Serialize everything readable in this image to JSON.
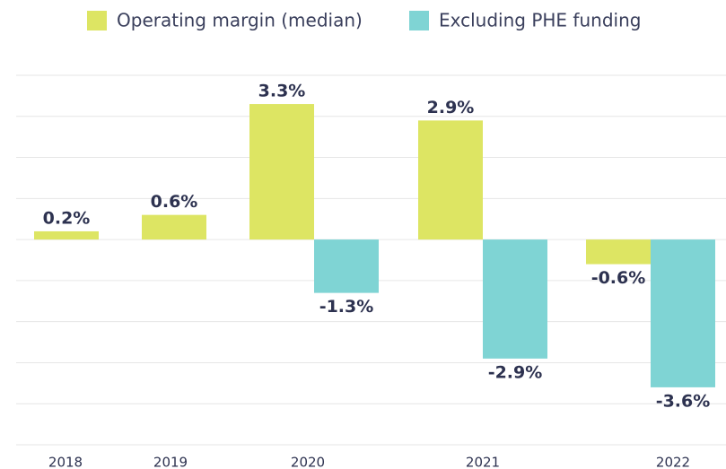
{
  "chart_data": {
    "type": "bar",
    "categories": [
      "2018",
      "2019",
      "2020",
      "2021",
      "2022"
    ],
    "series": [
      {
        "name": "Operating margin (median)",
        "color": "#dde563",
        "values": [
          0.2,
          0.6,
          3.3,
          2.9,
          -0.6
        ],
        "value_labels": [
          "0.2%",
          "0.6%",
          "3.3%",
          "2.9%",
          "-0.6%"
        ]
      },
      {
        "name": "Excluding PHE funding",
        "color": "#7fd4d4",
        "values": [
          null,
          null,
          -1.3,
          -2.9,
          -3.6
        ],
        "value_labels": [
          null,
          null,
          "-1.3%",
          "-2.9%",
          "-3.6%"
        ]
      }
    ],
    "ylim": [
      -5,
      4
    ],
    "yticks": [
      -5,
      -4,
      -3,
      -2,
      -1,
      0,
      1,
      2,
      3,
      4
    ],
    "grid": true,
    "legend": "top"
  }
}
